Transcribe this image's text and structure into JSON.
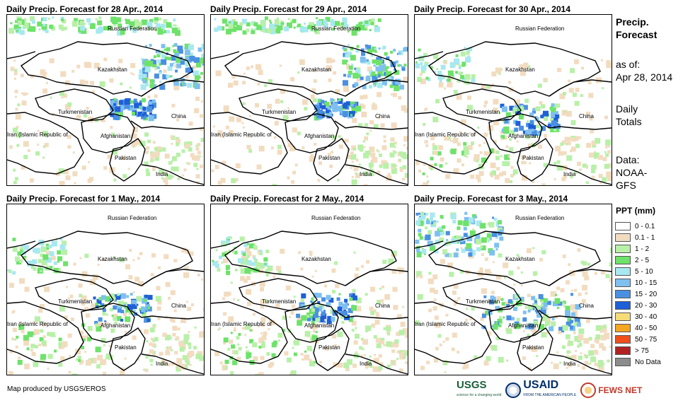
{
  "panels": [
    {
      "title": "Daily Precip. Forecast for 28 Apr., 2014",
      "pattern": "north-heavy"
    },
    {
      "title": "Daily Precip. Forecast for 29 Apr., 2014",
      "pattern": "north-heavy"
    },
    {
      "title": "Daily Precip. Forecast for 30 Apr., 2014",
      "pattern": "scattered"
    },
    {
      "title": "Daily Precip. Forecast for 1 May., 2014",
      "pattern": "scattered"
    },
    {
      "title": "Daily Precip. Forecast for 2 May., 2014",
      "pattern": "scattered"
    },
    {
      "title": "Daily Precip. Forecast for 3 May., 2014",
      "pattern": "northwest-heavy"
    }
  ],
  "map_labels": {
    "russia": "Russian Federation",
    "kazakhstan": "Kazakhstan",
    "turkmenistan": "Turkmenistan",
    "china": "China",
    "iran": "Iran  (Islamic Republic of",
    "afghanistan": "Afghanistan",
    "pakistan": "Pakistan",
    "india": "India"
  },
  "sidebar": {
    "title_line1": "Precip.",
    "title_line2": "Forecast",
    "asof_line1": "as of:",
    "asof_line2": "Apr 28, 2014",
    "totals_line1": "Daily",
    "totals_line2": "Totals",
    "data_line1": "Data:",
    "data_line2": "NOAA-",
    "data_line3": "GFS"
  },
  "legend": {
    "title": "PPT (mm)",
    "items": [
      {
        "label": "0 - 0.1",
        "color": "#ffffff"
      },
      {
        "label": "0.1 - 1",
        "color": "#f2dcc0"
      },
      {
        "label": "1 - 2",
        "color": "#b8f0a8"
      },
      {
        "label": "2 - 5",
        "color": "#6ee26a"
      },
      {
        "label": "5 - 10",
        "color": "#a8e8f0"
      },
      {
        "label": "10 - 15",
        "color": "#7ec0f0"
      },
      {
        "label": "15 - 20",
        "color": "#4a90e2"
      },
      {
        "label": "20 - 30",
        "color": "#1f5fd8"
      },
      {
        "label": "30 - 40",
        "color": "#f5dc78"
      },
      {
        "label": "40 - 50",
        "color": "#f5a623"
      },
      {
        "label": "50 - 75",
        "color": "#f04e1a"
      },
      {
        "label": "> 75",
        "color": "#b22222"
      },
      {
        "label": "No Data",
        "color": "#8c8c8c"
      }
    ]
  },
  "credit": "Map produced by USGS/EROS",
  "logos": {
    "usgs": "USGS",
    "usgs_tagline": "science for a changing world",
    "usaid": "USAID",
    "usaid_tagline": "FROM THE AMERICAN PEOPLE",
    "fews": "FEWS NET"
  }
}
